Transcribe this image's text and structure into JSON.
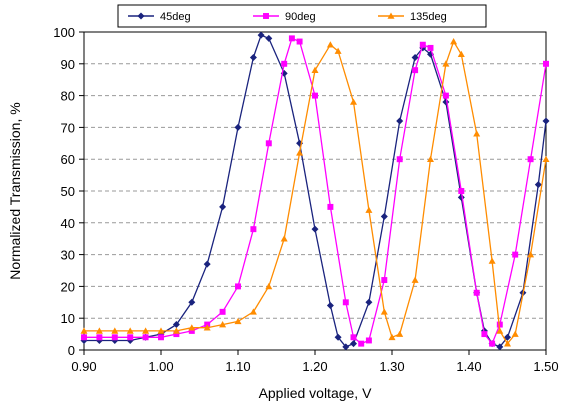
{
  "chart_data": {
    "type": "line",
    "title": "",
    "xlabel": "Applied voltage, V",
    "ylabel": "Normalized Transmission, %",
    "xlim": [
      0.9,
      1.5
    ],
    "ylim": [
      0,
      100
    ],
    "xticks": [
      "0.90",
      "1.00",
      "1.10",
      "1.20",
      "1.30",
      "1.40",
      "1.50"
    ],
    "yticks": [
      "0",
      "10",
      "20",
      "30",
      "40",
      "50",
      "60",
      "70",
      "80",
      "90",
      "100"
    ],
    "grid": "horizontal dashed",
    "legend_placement": "top",
    "series": [
      {
        "name": "45deg",
        "color": "#1a237e",
        "marker": "diamond",
        "points": [
          [
            0.9,
            3
          ],
          [
            0.92,
            3
          ],
          [
            0.94,
            3
          ],
          [
            0.96,
            3
          ],
          [
            0.98,
            4
          ],
          [
            1.0,
            5
          ],
          [
            1.02,
            8
          ],
          [
            1.04,
            15
          ],
          [
            1.06,
            27
          ],
          [
            1.08,
            45
          ],
          [
            1.1,
            70
          ],
          [
            1.12,
            92
          ],
          [
            1.13,
            99
          ],
          [
            1.14,
            98
          ],
          [
            1.16,
            87
          ],
          [
            1.18,
            65
          ],
          [
            1.2,
            38
          ],
          [
            1.22,
            14
          ],
          [
            1.23,
            4
          ],
          [
            1.24,
            1
          ],
          [
            1.25,
            2
          ],
          [
            1.27,
            15
          ],
          [
            1.29,
            42
          ],
          [
            1.31,
            72
          ],
          [
            1.33,
            92
          ],
          [
            1.34,
            95
          ],
          [
            1.35,
            93
          ],
          [
            1.37,
            78
          ],
          [
            1.39,
            48
          ],
          [
            1.41,
            18
          ],
          [
            1.42,
            6
          ],
          [
            1.43,
            2
          ],
          [
            1.44,
            1
          ],
          [
            1.45,
            4
          ],
          [
            1.47,
            18
          ],
          [
            1.49,
            52
          ],
          [
            1.5,
            72
          ]
        ]
      },
      {
        "name": "90deg",
        "color": "#ff00ff",
        "marker": "square",
        "points": [
          [
            0.9,
            4
          ],
          [
            0.92,
            4
          ],
          [
            0.94,
            4
          ],
          [
            0.96,
            4
          ],
          [
            0.98,
            4
          ],
          [
            1.0,
            4
          ],
          [
            1.02,
            5
          ],
          [
            1.04,
            6
          ],
          [
            1.06,
            8
          ],
          [
            1.08,
            12
          ],
          [
            1.1,
            20
          ],
          [
            1.12,
            38
          ],
          [
            1.14,
            65
          ],
          [
            1.16,
            90
          ],
          [
            1.17,
            98
          ],
          [
            1.18,
            97
          ],
          [
            1.2,
            80
          ],
          [
            1.22,
            45
          ],
          [
            1.24,
            15
          ],
          [
            1.25,
            4
          ],
          [
            1.26,
            2
          ],
          [
            1.27,
            3
          ],
          [
            1.29,
            22
          ],
          [
            1.31,
            60
          ],
          [
            1.33,
            88
          ],
          [
            1.34,
            96
          ],
          [
            1.35,
            95
          ],
          [
            1.37,
            80
          ],
          [
            1.39,
            50
          ],
          [
            1.41,
            18
          ],
          [
            1.42,
            5
          ],
          [
            1.43,
            2
          ],
          [
            1.44,
            8
          ],
          [
            1.46,
            30
          ],
          [
            1.48,
            60
          ],
          [
            1.5,
            90
          ]
        ]
      },
      {
        "name": "135deg",
        "color": "#ff8c00",
        "marker": "triangle",
        "points": [
          [
            0.9,
            6
          ],
          [
            0.92,
            6
          ],
          [
            0.94,
            6
          ],
          [
            0.96,
            6
          ],
          [
            0.98,
            6
          ],
          [
            1.0,
            6
          ],
          [
            1.02,
            6
          ],
          [
            1.04,
            7
          ],
          [
            1.06,
            7
          ],
          [
            1.08,
            8
          ],
          [
            1.1,
            9
          ],
          [
            1.12,
            12
          ],
          [
            1.14,
            20
          ],
          [
            1.16,
            35
          ],
          [
            1.18,
            62
          ],
          [
            1.2,
            88
          ],
          [
            1.22,
            96
          ],
          [
            1.23,
            94
          ],
          [
            1.25,
            78
          ],
          [
            1.27,
            44
          ],
          [
            1.29,
            12
          ],
          [
            1.3,
            4
          ],
          [
            1.31,
            5
          ],
          [
            1.33,
            22
          ],
          [
            1.35,
            60
          ],
          [
            1.37,
            90
          ],
          [
            1.38,
            97
          ],
          [
            1.39,
            93
          ],
          [
            1.41,
            68
          ],
          [
            1.43,
            28
          ],
          [
            1.44,
            6
          ],
          [
            1.45,
            2
          ],
          [
            1.46,
            5
          ],
          [
            1.48,
            30
          ],
          [
            1.5,
            60
          ]
        ]
      }
    ]
  }
}
